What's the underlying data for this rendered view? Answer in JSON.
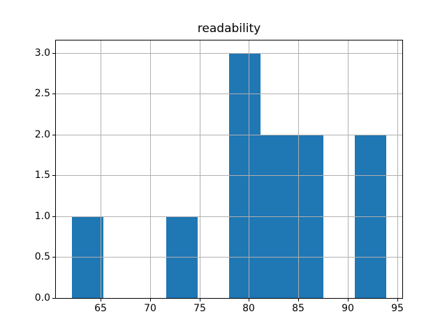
{
  "chart_data": {
    "type": "bar",
    "subtype": "histogram",
    "title": "readability",
    "bins": 10,
    "bin_edges": [
      62.07,
      65.26,
      68.44,
      71.63,
      74.81,
      78.0,
      81.19,
      84.37,
      87.56,
      90.74,
      93.93
    ],
    "counts": [
      1,
      0,
      0,
      1,
      0,
      3,
      2,
      2,
      0,
      2
    ],
    "xlabel": "",
    "ylabel": "",
    "xlim": [
      60.48,
      95.52
    ],
    "ylim": [
      0,
      3.15
    ],
    "xticks": [
      65,
      70,
      75,
      80,
      85,
      90,
      95
    ],
    "xtick_labels": [
      "65",
      "70",
      "75",
      "80",
      "85",
      "90",
      "95"
    ],
    "yticks": [
      0.0,
      0.5,
      1.0,
      1.5,
      2.0,
      2.5,
      3.0
    ],
    "ytick_labels": [
      "0.0",
      "0.5",
      "1.0",
      "1.5",
      "2.0",
      "2.5",
      "3.0"
    ],
    "grid": true,
    "grid_over_bars": true,
    "legend": "none",
    "colors": {
      "bar": "#1f77b4",
      "grid": "#b0b0b0",
      "spine": "#000000",
      "text": "#000000",
      "background": "#ffffff"
    }
  }
}
